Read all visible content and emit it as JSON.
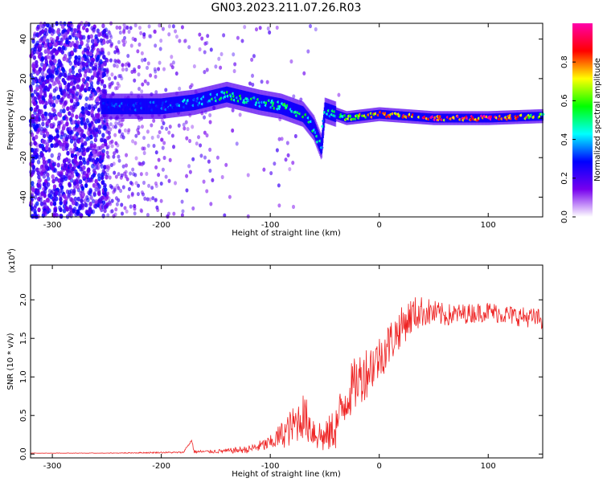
{
  "figure": {
    "title": "GN03.2023.211.07.26.R03"
  },
  "chart_data": [
    {
      "type": "heatmap",
      "xlabel": "Height of straight line (km)",
      "ylabel": "Frequency (Hz)",
      "xlim": [
        -320,
        150
      ],
      "ylim": [
        -50,
        48
      ],
      "xticks": [
        -300,
        -200,
        -100,
        0,
        100
      ],
      "yticks": [
        -40,
        -20,
        0,
        20,
        40
      ],
      "grid": false,
      "colorbar": {
        "label": "Normalized spectral amplitude",
        "range": [
          0,
          1
        ],
        "ticks": [
          0.0,
          0.2,
          0.4,
          0.6,
          0.8
        ],
        "colormap": [
          "#ffffff",
          "#7700ee",
          "#0000ff",
          "#00ffff",
          "#00ff00",
          "#ffff00",
          "#ff0000",
          "#ff00aa"
        ]
      },
      "features": [
        {
          "name": "noise",
          "x_range": [
            -320,
            -250
          ],
          "y_range": [
            -50,
            48
          ],
          "amplitude": 0.25
        },
        {
          "name": "main-band",
          "points": [
            [
              -255,
              6
            ],
            [
              -200,
              6
            ],
            [
              -170,
              8
            ],
            [
              -140,
              12
            ],
            [
              -110,
              8
            ],
            [
              -90,
              6
            ],
            [
              -70,
              2
            ],
            [
              -60,
              -5
            ],
            [
              -53,
              -15
            ],
            [
              -50,
              4
            ],
            [
              -30,
              0
            ],
            [
              0,
              2
            ],
            [
              50,
              0
            ],
            [
              100,
              0
            ],
            [
              150,
              1
            ]
          ],
          "amplitude": [
            0.3,
            0.3,
            0.4,
            0.5,
            0.45,
            0.5,
            0.55,
            0.5,
            0.4,
            0.4,
            0.6,
            0.75,
            0.9,
            0.9,
            0.6
          ]
        }
      ]
    },
    {
      "type": "line",
      "xlabel": "Height of straight line (km)",
      "ylabel": "SNR (10 * v/v)",
      "yscale_label": "(x10",
      "yscale_exponent": "4",
      "xlim": [
        -320,
        150
      ],
      "ylim": [
        -0.05,
        2.45
      ],
      "xticks": [
        -300,
        -200,
        -100,
        0,
        100
      ],
      "yticks": [
        "0.0",
        "0.5",
        "1.0",
        "1.5",
        "2.0"
      ],
      "grid": false,
      "series": [
        {
          "color": "#ee2222",
          "x": [
            -320,
            -250,
            -200,
            -180,
            -172,
            -170,
            -160,
            -140,
            -120,
            -100,
            -80,
            -70,
            -60,
            -50,
            -40,
            -30,
            -20,
            -10,
            0,
            10,
            20,
            30,
            40,
            60,
            80,
            100,
            120,
            150
          ],
          "y": [
            0.01,
            0.01,
            0.02,
            0.02,
            0.18,
            0.03,
            0.03,
            0.04,
            0.06,
            0.14,
            0.35,
            0.5,
            0.3,
            0.2,
            0.35,
            0.75,
            0.95,
            1.1,
            1.25,
            1.45,
            1.65,
            1.8,
            1.85,
            1.8,
            1.82,
            1.85,
            1.8,
            1.75
          ],
          "noise": [
            0.005,
            0.005,
            0.01,
            0.01,
            0.02,
            0.02,
            0.02,
            0.03,
            0.05,
            0.1,
            0.25,
            0.3,
            0.25,
            0.2,
            0.3,
            0.35,
            0.35,
            0.35,
            0.3,
            0.3,
            0.25,
            0.25,
            0.2,
            0.15,
            0.13,
            0.13,
            0.13,
            0.13
          ]
        }
      ]
    }
  ]
}
